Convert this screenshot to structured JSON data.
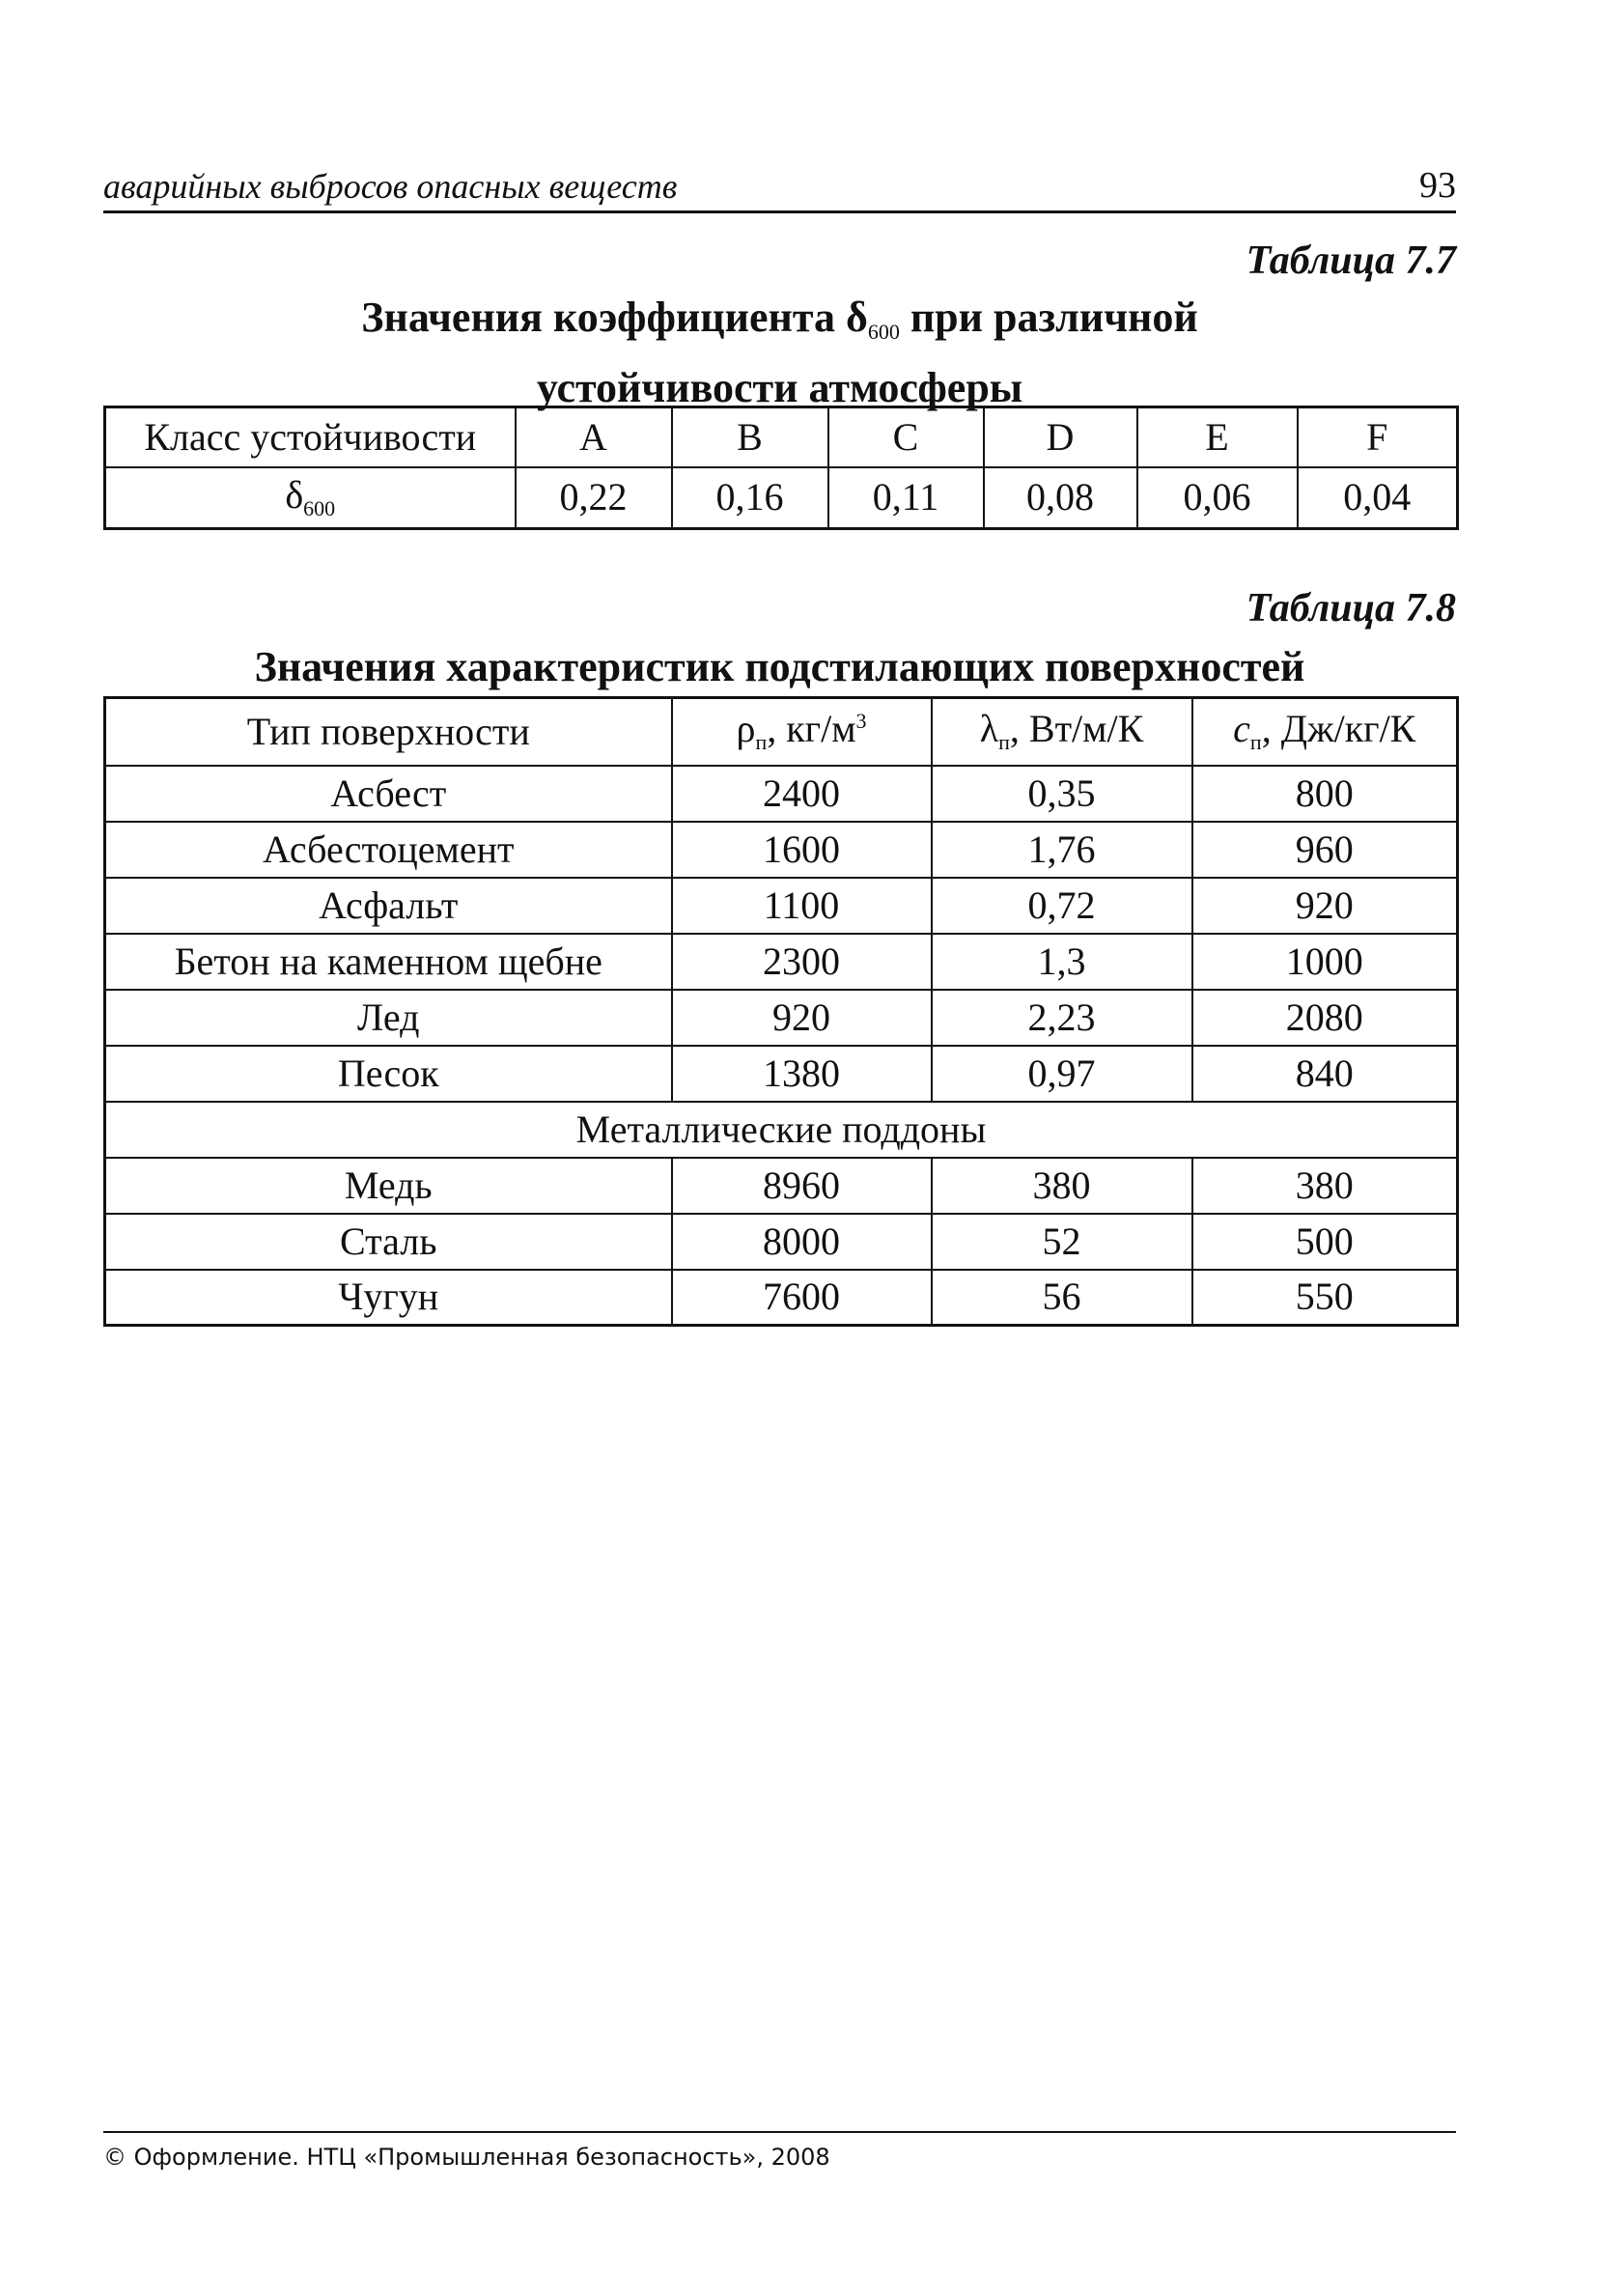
{
  "running_header": {
    "text": "аварийных выбросов опасных веществ",
    "page_number": "93"
  },
  "table_7_7": {
    "label": "Таблица 7.7",
    "title_part1": "Значения коэффициента δ",
    "title_sub": "600",
    "title_part2": " при различной",
    "title_line2": "устойчивости атмосферы",
    "header": [
      "Класс устойчивости",
      "A",
      "B",
      "C",
      "D",
      "E",
      "F"
    ],
    "row_label": "δ",
    "row_label_sub": "600",
    "values": [
      "0,22",
      "0,16",
      "0,11",
      "0,08",
      "0,06",
      "0,04"
    ]
  },
  "table_7_8": {
    "label": "Таблица 7.8",
    "title": "Значения характеристик подстилающих поверхностей",
    "header": {
      "col0": "Тип поверхности",
      "col1_sym": "ρ",
      "col1_sub": "п",
      "col1_unit": ", кг/м",
      "col1_sup": "3",
      "col2_sym": "λ",
      "col2_sub": "п",
      "col2_unit": ", Вт/м/К",
      "col3_sym": "c",
      "col3_sub": "п",
      "col3_unit": ", Дж/кг/К"
    },
    "rows": [
      [
        "Асбест",
        "2400",
        "0,35",
        "800"
      ],
      [
        "Асбестоцемент",
        "1600",
        "1,76",
        "960"
      ],
      [
        "Асфальт",
        "1100",
        "0,72",
        "920"
      ],
      [
        "Бетон на каменном щебне",
        "2300",
        "1,3",
        "1000"
      ],
      [
        "Лед",
        "920",
        "2,23",
        "2080"
      ],
      [
        "Песок",
        "1380",
        "0,97",
        "840"
      ]
    ],
    "section": "Металлические поддоны",
    "metal_rows": [
      [
        "Медь",
        "8960",
        "380",
        "380"
      ],
      [
        "Сталь",
        "8000",
        "52",
        "500"
      ],
      [
        "Чугун",
        "7600",
        "56",
        "550"
      ]
    ]
  },
  "footer": {
    "text": "© Оформление. НТЦ «Промышленная безопасность», 2008"
  }
}
